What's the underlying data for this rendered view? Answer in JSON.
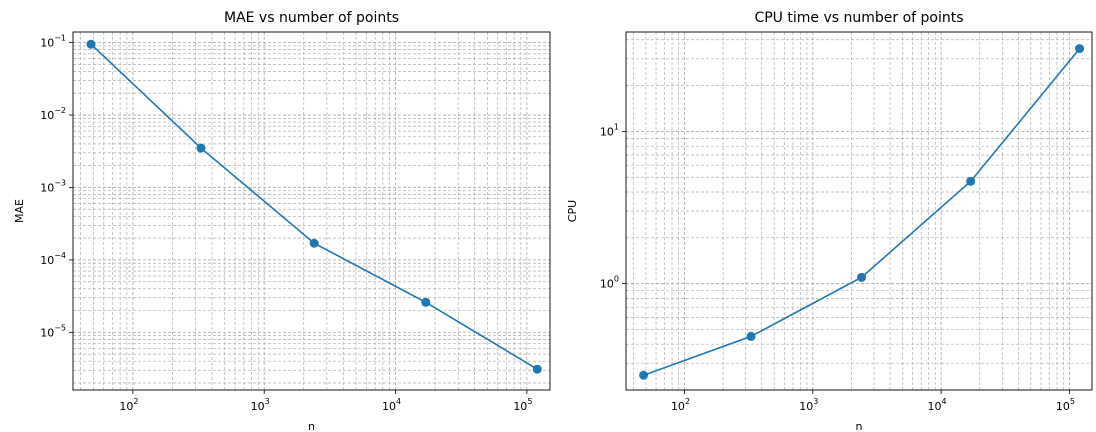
{
  "chart_data": [
    {
      "type": "line",
      "title": "MAE vs number of points",
      "xlabel": "n",
      "ylabel": "MAE",
      "xscale": "log",
      "yscale": "log",
      "grid": "both (major and minor), dashed",
      "xlim": [
        35,
        150000
      ],
      "ylim": [
        1.6e-06,
        0.14
      ],
      "xticks": [
        {
          "base": "10",
          "exp": "2",
          "value": 100
        },
        {
          "base": "10",
          "exp": "3",
          "value": 1000
        },
        {
          "base": "10",
          "exp": "4",
          "value": 10000
        },
        {
          "base": "10",
          "exp": "5",
          "value": 100000
        }
      ],
      "yticks": [
        {
          "base": "10",
          "exp": "−5",
          "value": 1e-05
        },
        {
          "base": "10",
          "exp": "−4",
          "value": 0.0001
        },
        {
          "base": "10",
          "exp": "−3",
          "value": 0.001
        },
        {
          "base": "10",
          "exp": "−2",
          "value": 0.01
        },
        {
          "base": "10",
          "exp": "−1",
          "value": 0.1
        }
      ],
      "color": "#1f77b4",
      "series": [
        {
          "x": [
            48,
            330,
            2400,
            17000,
            120000
          ],
          "y": [
            0.095,
            0.0035,
            0.00017,
            2.6e-05,
            3.1e-06
          ]
        }
      ]
    },
    {
      "type": "line",
      "title": "CPU time vs number of points",
      "xlabel": "n",
      "ylabel": "CPU",
      "xscale": "log",
      "yscale": "log",
      "grid": "both (major and minor), dashed",
      "xlim": [
        35,
        150000
      ],
      "ylim": [
        0.2,
        45
      ],
      "xticks": [
        {
          "base": "10",
          "exp": "2",
          "value": 100
        },
        {
          "base": "10",
          "exp": "3",
          "value": 1000
        },
        {
          "base": "10",
          "exp": "4",
          "value": 10000
        },
        {
          "base": "10",
          "exp": "5",
          "value": 100000
        }
      ],
      "yticks": [
        {
          "base": "10",
          "exp": "0",
          "value": 1
        },
        {
          "base": "10",
          "exp": "1",
          "value": 10
        }
      ],
      "color": "#1f77b4",
      "series": [
        {
          "x": [
            48,
            330,
            2400,
            17000,
            120000
          ],
          "y": [
            0.25,
            0.45,
            1.1,
            4.7,
            35
          ]
        }
      ]
    }
  ]
}
